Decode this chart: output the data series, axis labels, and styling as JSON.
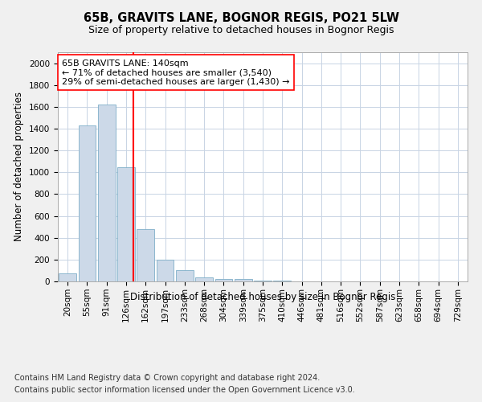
{
  "title": "65B, GRAVITS LANE, BOGNOR REGIS, PO21 5LW",
  "subtitle": "Size of property relative to detached houses in Bognor Regis",
  "xlabel": "Distribution of detached houses by size in Bognor Regis",
  "ylabel": "Number of detached properties",
  "footer_line1": "Contains HM Land Registry data © Crown copyright and database right 2024.",
  "footer_line2": "Contains public sector information licensed under the Open Government Licence v3.0.",
  "annotation_line1": "65B GRAVITS LANE: 140sqm",
  "annotation_line2": "← 71% of detached houses are smaller (3,540)",
  "annotation_line3": "29% of semi-detached houses are larger (1,430) →",
  "bar_color": "#ccd9e8",
  "bar_edgecolor": "#7fafc8",
  "redline_x": 3,
  "categories": [
    "20sqm",
    "55sqm",
    "91sqm",
    "126sqm",
    "162sqm",
    "197sqm",
    "233sqm",
    "268sqm",
    "304sqm",
    "339sqm",
    "375sqm",
    "410sqm",
    "446sqm",
    "481sqm",
    "516sqm",
    "552sqm",
    "587sqm",
    "623sqm",
    "658sqm",
    "694sqm",
    "729sqm"
  ],
  "values": [
    75,
    1430,
    1620,
    1050,
    480,
    200,
    100,
    35,
    25,
    20,
    10,
    5,
    3,
    2,
    1,
    1,
    0,
    0,
    0,
    0,
    0
  ],
  "ylim": [
    0,
    2100
  ],
  "yticks": [
    0,
    200,
    400,
    600,
    800,
    1000,
    1200,
    1400,
    1600,
    1800,
    2000
  ],
  "background_color": "#f0f0f0",
  "plot_background": "#ffffff",
  "grid_color": "#c8d4e4",
  "title_fontsize": 10.5,
  "subtitle_fontsize": 9,
  "ylabel_fontsize": 8.5,
  "xlabel_fontsize": 8.5,
  "tick_fontsize": 7.5,
  "annotation_fontsize": 8,
  "footer_fontsize": 7
}
